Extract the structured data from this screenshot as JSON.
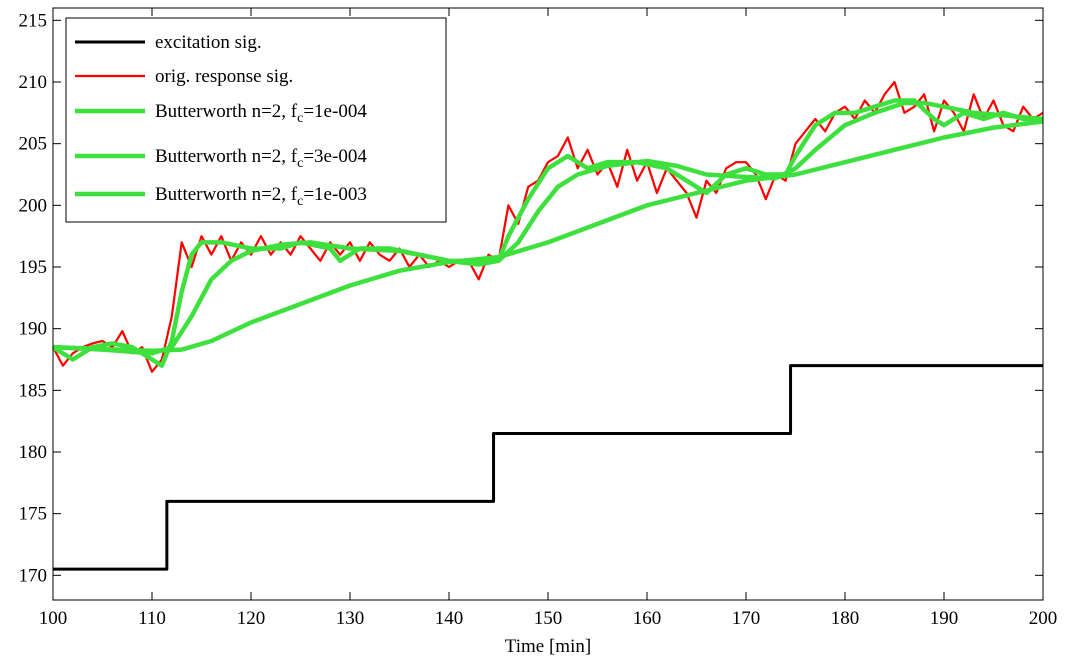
{
  "chart_data": {
    "type": "line",
    "xlabel": "Time [min]",
    "xlim": [
      100,
      200
    ],
    "xticks": [
      100,
      110,
      120,
      130,
      140,
      150,
      160,
      170,
      180,
      190,
      200
    ],
    "ylim": [
      168,
      216
    ],
    "yticks": [
      170,
      175,
      180,
      185,
      190,
      195,
      200,
      205,
      210,
      215
    ],
    "legend": "upper left",
    "series": [
      {
        "name": "excitation sig.",
        "color": "#000000",
        "x": [
          100,
          111.5,
          111.5,
          144.5,
          144.5,
          174.5,
          174.5,
          200
        ],
        "values": [
          170.5,
          170.5,
          176,
          176,
          181.5,
          181.5,
          187,
          187
        ]
      },
      {
        "name": "orig. response sig.",
        "color": "#ff0000",
        "x": [
          100,
          101,
          102,
          103,
          104,
          105,
          106,
          107,
          108,
          109,
          110,
          111,
          112,
          113,
          114,
          115,
          116,
          117,
          118,
          119,
          120,
          121,
          122,
          123,
          124,
          125,
          126,
          127,
          128,
          129,
          130,
          131,
          132,
          133,
          134,
          135,
          136,
          137,
          138,
          139,
          140,
          141,
          142,
          143,
          144,
          145,
          146,
          147,
          148,
          149,
          150,
          151,
          152,
          153,
          154,
          155,
          156,
          157,
          158,
          159,
          160,
          161,
          162,
          163,
          164,
          165,
          166,
          167,
          168,
          169,
          170,
          171,
          172,
          173,
          174,
          175,
          176,
          177,
          178,
          179,
          180,
          181,
          182,
          183,
          184,
          185,
          186,
          187,
          188,
          189,
          190,
          191,
          192,
          193,
          194,
          195,
          196,
          197,
          198,
          199,
          200
        ],
        "values": [
          188.5,
          187,
          188,
          188.5,
          188.8,
          189,
          188.5,
          189.8,
          188,
          188.5,
          186.5,
          187.5,
          191,
          197,
          195,
          197.5,
          196,
          197.5,
          195.5,
          197,
          196,
          197.5,
          196,
          197,
          196,
          197.5,
          196.5,
          195.5,
          197,
          196,
          197,
          195.5,
          197,
          196,
          195.5,
          196.5,
          195,
          196,
          195,
          195.5,
          195,
          195.5,
          195.5,
          194,
          196,
          195.5,
          200,
          198.5,
          201.5,
          202,
          203.5,
          204,
          205.5,
          203,
          204.5,
          202.5,
          203.5,
          201.5,
          204.5,
          202,
          203.5,
          201,
          203,
          202,
          201,
          199,
          202,
          201,
          203,
          203.5,
          203.5,
          202.5,
          200.5,
          202.5,
          202,
          205,
          206,
          207,
          206,
          207.5,
          208,
          207,
          208.5,
          207.5,
          209,
          210,
          207.5,
          208,
          209,
          206,
          208.5,
          207.5,
          206,
          209,
          207,
          208.5,
          206.5,
          206,
          208,
          207,
          207.5
        ]
      },
      {
        "name": "Butterworth n=2, fc=1e-004",
        "color": "#3ee03e",
        "x": [
          100,
          110,
          113,
          116,
          120,
          125,
          130,
          135,
          140,
          145,
          150,
          155,
          160,
          165,
          170,
          175,
          180,
          185,
          190,
          195,
          200
        ],
        "values": [
          188.5,
          188.2,
          188.3,
          189,
          190.5,
          192,
          193.5,
          194.7,
          195.4,
          195.8,
          197,
          198.5,
          200,
          201,
          202,
          202.5,
          203.5,
          204.5,
          205.5,
          206.3,
          206.8
        ]
      },
      {
        "name": "Butterworth n=2, fc=3e-004",
        "color": "#3ee03e",
        "x": [
          100,
          105,
          110,
          112,
          114,
          116,
          118,
          120,
          123,
          126,
          130,
          135,
          140,
          143,
          145,
          147,
          149,
          151,
          153,
          156,
          160,
          163,
          166,
          170,
          173,
          175,
          177,
          180,
          183,
          186,
          188,
          190,
          193,
          196,
          200
        ],
        "values": [
          188.5,
          188.3,
          188,
          188.5,
          191,
          194,
          195.5,
          196.3,
          196.8,
          197,
          196.5,
          196.3,
          195.5,
          195.2,
          195.5,
          197,
          199.5,
          201.5,
          202.5,
          203.2,
          203.6,
          203.2,
          202.5,
          202.3,
          202.2,
          203,
          204.5,
          206.5,
          207.5,
          208.3,
          208.3,
          208,
          207.5,
          207.3,
          207
        ]
      },
      {
        "name": "Butterworth n=2, fc=1e-003",
        "color": "#3ee03e",
        "x": [
          100,
          102,
          104,
          106,
          108,
          110,
          111,
          112,
          113,
          114,
          115,
          117,
          120,
          123,
          125,
          128,
          129,
          131,
          134,
          137,
          140,
          143,
          145,
          146,
          148,
          150,
          152,
          154,
          156,
          159,
          162,
          164,
          166,
          168,
          170,
          172,
          174,
          175,
          177,
          179,
          181,
          183,
          185,
          187,
          189,
          190,
          192,
          194,
          196,
          198,
          200
        ],
        "values": [
          188.5,
          187.5,
          188.5,
          188.8,
          188.5,
          187.5,
          187,
          189,
          193,
          196,
          197,
          197,
          196.5,
          196.5,
          197,
          196.5,
          195.5,
          196.5,
          196.5,
          196,
          195.5,
          195.5,
          195.5,
          197.5,
          200.5,
          203,
          204,
          203,
          203.5,
          203.5,
          203,
          202,
          201,
          202.5,
          203,
          202.5,
          202.5,
          204,
          206.5,
          207.5,
          207.5,
          208,
          208.5,
          208.5,
          207,
          206.5,
          207.5,
          207,
          207.5,
          207,
          207
        ]
      }
    ]
  }
}
